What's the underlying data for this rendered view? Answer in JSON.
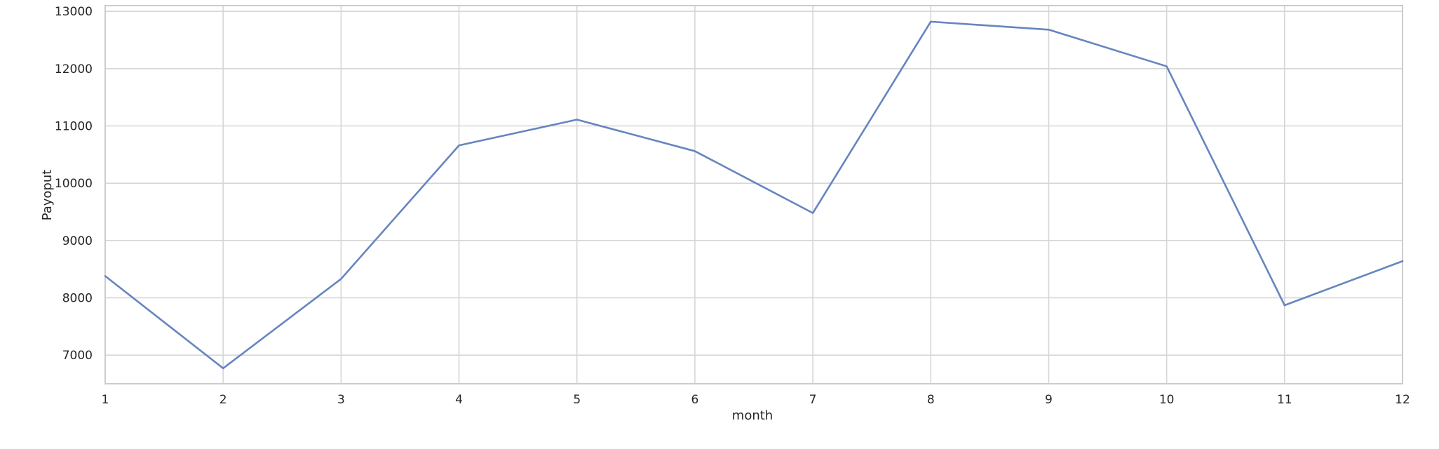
{
  "chart_data": {
    "type": "line",
    "title": "",
    "xlabel": "month",
    "ylabel": "Payoput",
    "x": [
      1,
      2,
      3,
      4,
      5,
      6,
      7,
      8,
      9,
      10,
      11,
      12
    ],
    "xticks": [
      "1",
      "2",
      "3",
      "4",
      "5",
      "6",
      "7",
      "8",
      "9",
      "10",
      "11",
      "12"
    ],
    "yticks": [
      "7000",
      "8000",
      "9000",
      "10000",
      "11000",
      "12000",
      "13000"
    ],
    "xlim": [
      1,
      12
    ],
    "ylim": [
      6500,
      13100
    ],
    "grid": true,
    "series": [
      {
        "values": [
          8380,
          6770,
          8330,
          10660,
          11110,
          10560,
          9480,
          12820,
          12680,
          12040,
          7870,
          8640
        ]
      }
    ],
    "colors": {
      "line": "#6685c0",
      "grid": "#d6d6d6",
      "spine": "#cccccc"
    }
  }
}
